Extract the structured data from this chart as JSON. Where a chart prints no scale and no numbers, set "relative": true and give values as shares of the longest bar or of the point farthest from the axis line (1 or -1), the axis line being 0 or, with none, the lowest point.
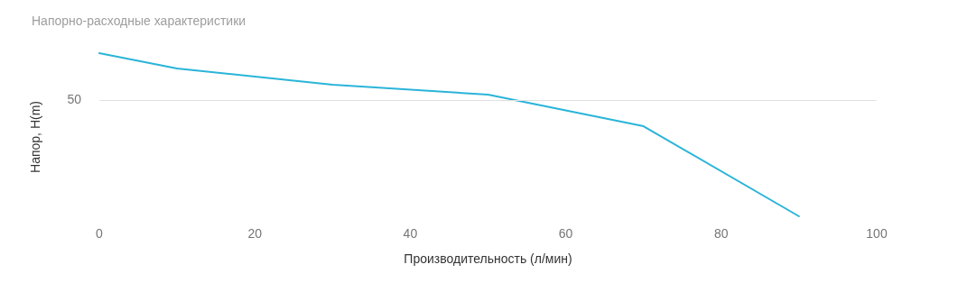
{
  "chart_data": {
    "type": "line",
    "title": "Напорно-расходные характеристики",
    "xlabel": "Производительность (л/мин)",
    "ylabel": "Напор, H(m)",
    "relative": true,
    "x": [
      0,
      10,
      30,
      50,
      70,
      90
    ],
    "series": [
      {
        "color": "#2ab4d9",
        "values": [
          1,
          0.906,
          0.807,
          0.746,
          0.552,
          0
        ]
      }
    ],
    "xlim": [
      0,
      100
    ],
    "xticks": [
      0,
      20,
      40,
      60,
      80,
      100
    ],
    "ref_lines": [
      {
        "axis": "y",
        "value": 0.713,
        "color": "#e0e0e0"
      }
    ],
    "annotations": [
      "50"
    ],
    "grid": false,
    "marker": "none",
    "line_style": "solid"
  }
}
